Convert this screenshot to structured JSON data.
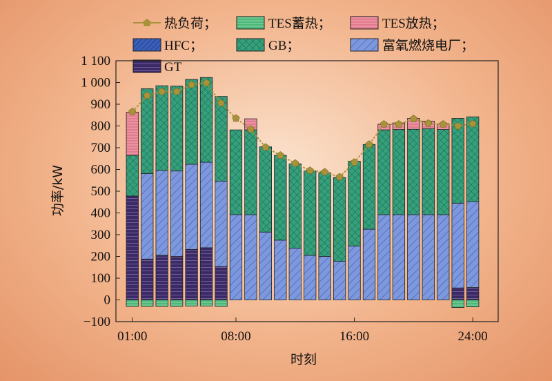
{
  "chart_data": {
    "type": "bar",
    "subtype": "stacked-bar-with-line",
    "xlabel": "时刻",
    "ylabel": "功率/kW",
    "ylim": [
      -100,
      1100
    ],
    "yticks": [
      -100,
      0,
      100,
      200,
      300,
      400,
      500,
      600,
      700,
      800,
      900,
      1000,
      1100
    ],
    "ytick_labels": [
      "−100",
      "0",
      "100",
      "200",
      "300",
      "400",
      "500",
      "600",
      "700",
      "800",
      "900",
      "1 000",
      "1 100"
    ],
    "xtick_labels": [
      "01:00",
      "08:00",
      "16:00",
      "24:00"
    ],
    "xtick_hours": [
      1,
      8,
      16,
      24
    ],
    "x": [
      1,
      2,
      3,
      4,
      5,
      6,
      7,
      8,
      9,
      10,
      11,
      12,
      13,
      14,
      15,
      16,
      17,
      18,
      19,
      20,
      21,
      22,
      23,
      24
    ],
    "grid": false,
    "legend_position": "top",
    "series": [
      {
        "name": "GT",
        "color": "#3b2a66",
        "pattern": "hlines",
        "values": [
          478,
          188,
          205,
          200,
          232,
          240,
          153,
          0,
          0,
          0,
          0,
          0,
          0,
          0,
          0,
          0,
          0,
          0,
          0,
          0,
          0,
          0,
          55,
          57
        ]
      },
      {
        "name": "HFC",
        "color": "#3b5fb8",
        "pattern": "diag-dense",
        "values": [
          0,
          0,
          0,
          0,
          0,
          0,
          0,
          0,
          0,
          0,
          0,
          0,
          0,
          0,
          0,
          0,
          0,
          0,
          0,
          0,
          0,
          0,
          0,
          0
        ]
      },
      {
        "name": "富氧燃烧电厂",
        "color": "#7d98dd",
        "pattern": "diag",
        "values": [
          0,
          393,
          390,
          393,
          392,
          393,
          393,
          392,
          392,
          312,
          275,
          238,
          205,
          200,
          178,
          248,
          325,
          392,
          392,
          392,
          392,
          392,
          390,
          395
        ]
      },
      {
        "name": "GB",
        "color": "#35a07c",
        "pattern": "crosshatch",
        "values": [
          187,
          390,
          390,
          390,
          390,
          390,
          390,
          390,
          390,
          392,
          390,
          388,
          388,
          385,
          385,
          390,
          390,
          390,
          392,
          393,
          395,
          392,
          390,
          390
        ]
      },
      {
        "name": "TES放热",
        "color": "#e37b8e",
        "pattern": "hlines-light",
        "values": [
          198,
          0,
          0,
          0,
          0,
          0,
          0,
          0,
          51,
          0,
          0,
          0,
          0,
          0,
          0,
          0,
          0,
          26,
          30,
          50,
          35,
          25,
          0,
          0
        ]
      },
      {
        "name": "TES蓄热",
        "color": "#4cb979",
        "pattern": "hlines-green",
        "values": [
          -30,
          -30,
          -30,
          -30,
          -28,
          -28,
          -30,
          0,
          0,
          0,
          0,
          0,
          0,
          0,
          0,
          0,
          0,
          0,
          0,
          0,
          0,
          0,
          -35,
          -32
        ]
      },
      {
        "name": "热负荷",
        "color": "#a8923a",
        "marker": "pentagon",
        "type": "line",
        "values": [
          865,
          940,
          958,
          958,
          990,
          998,
          905,
          835,
          785,
          702,
          665,
          628,
          595,
          588,
          565,
          633,
          715,
          808,
          808,
          833,
          812,
          808,
          800,
          810
        ]
      }
    ]
  },
  "legend": {
    "items": [
      {
        "label": "热负荷；",
        "key": "heat_load"
      },
      {
        "label": "TES蓄热；",
        "key": "tes_charge"
      },
      {
        "label": "TES放热；",
        "key": "tes_discharge"
      },
      {
        "label": "HFC；",
        "key": "hfc"
      },
      {
        "label": "GB；",
        "key": "gb"
      },
      {
        "label": "富氧燃烧电厂；",
        "key": "oxy"
      },
      {
        "label": "GT",
        "key": "gt"
      }
    ]
  }
}
